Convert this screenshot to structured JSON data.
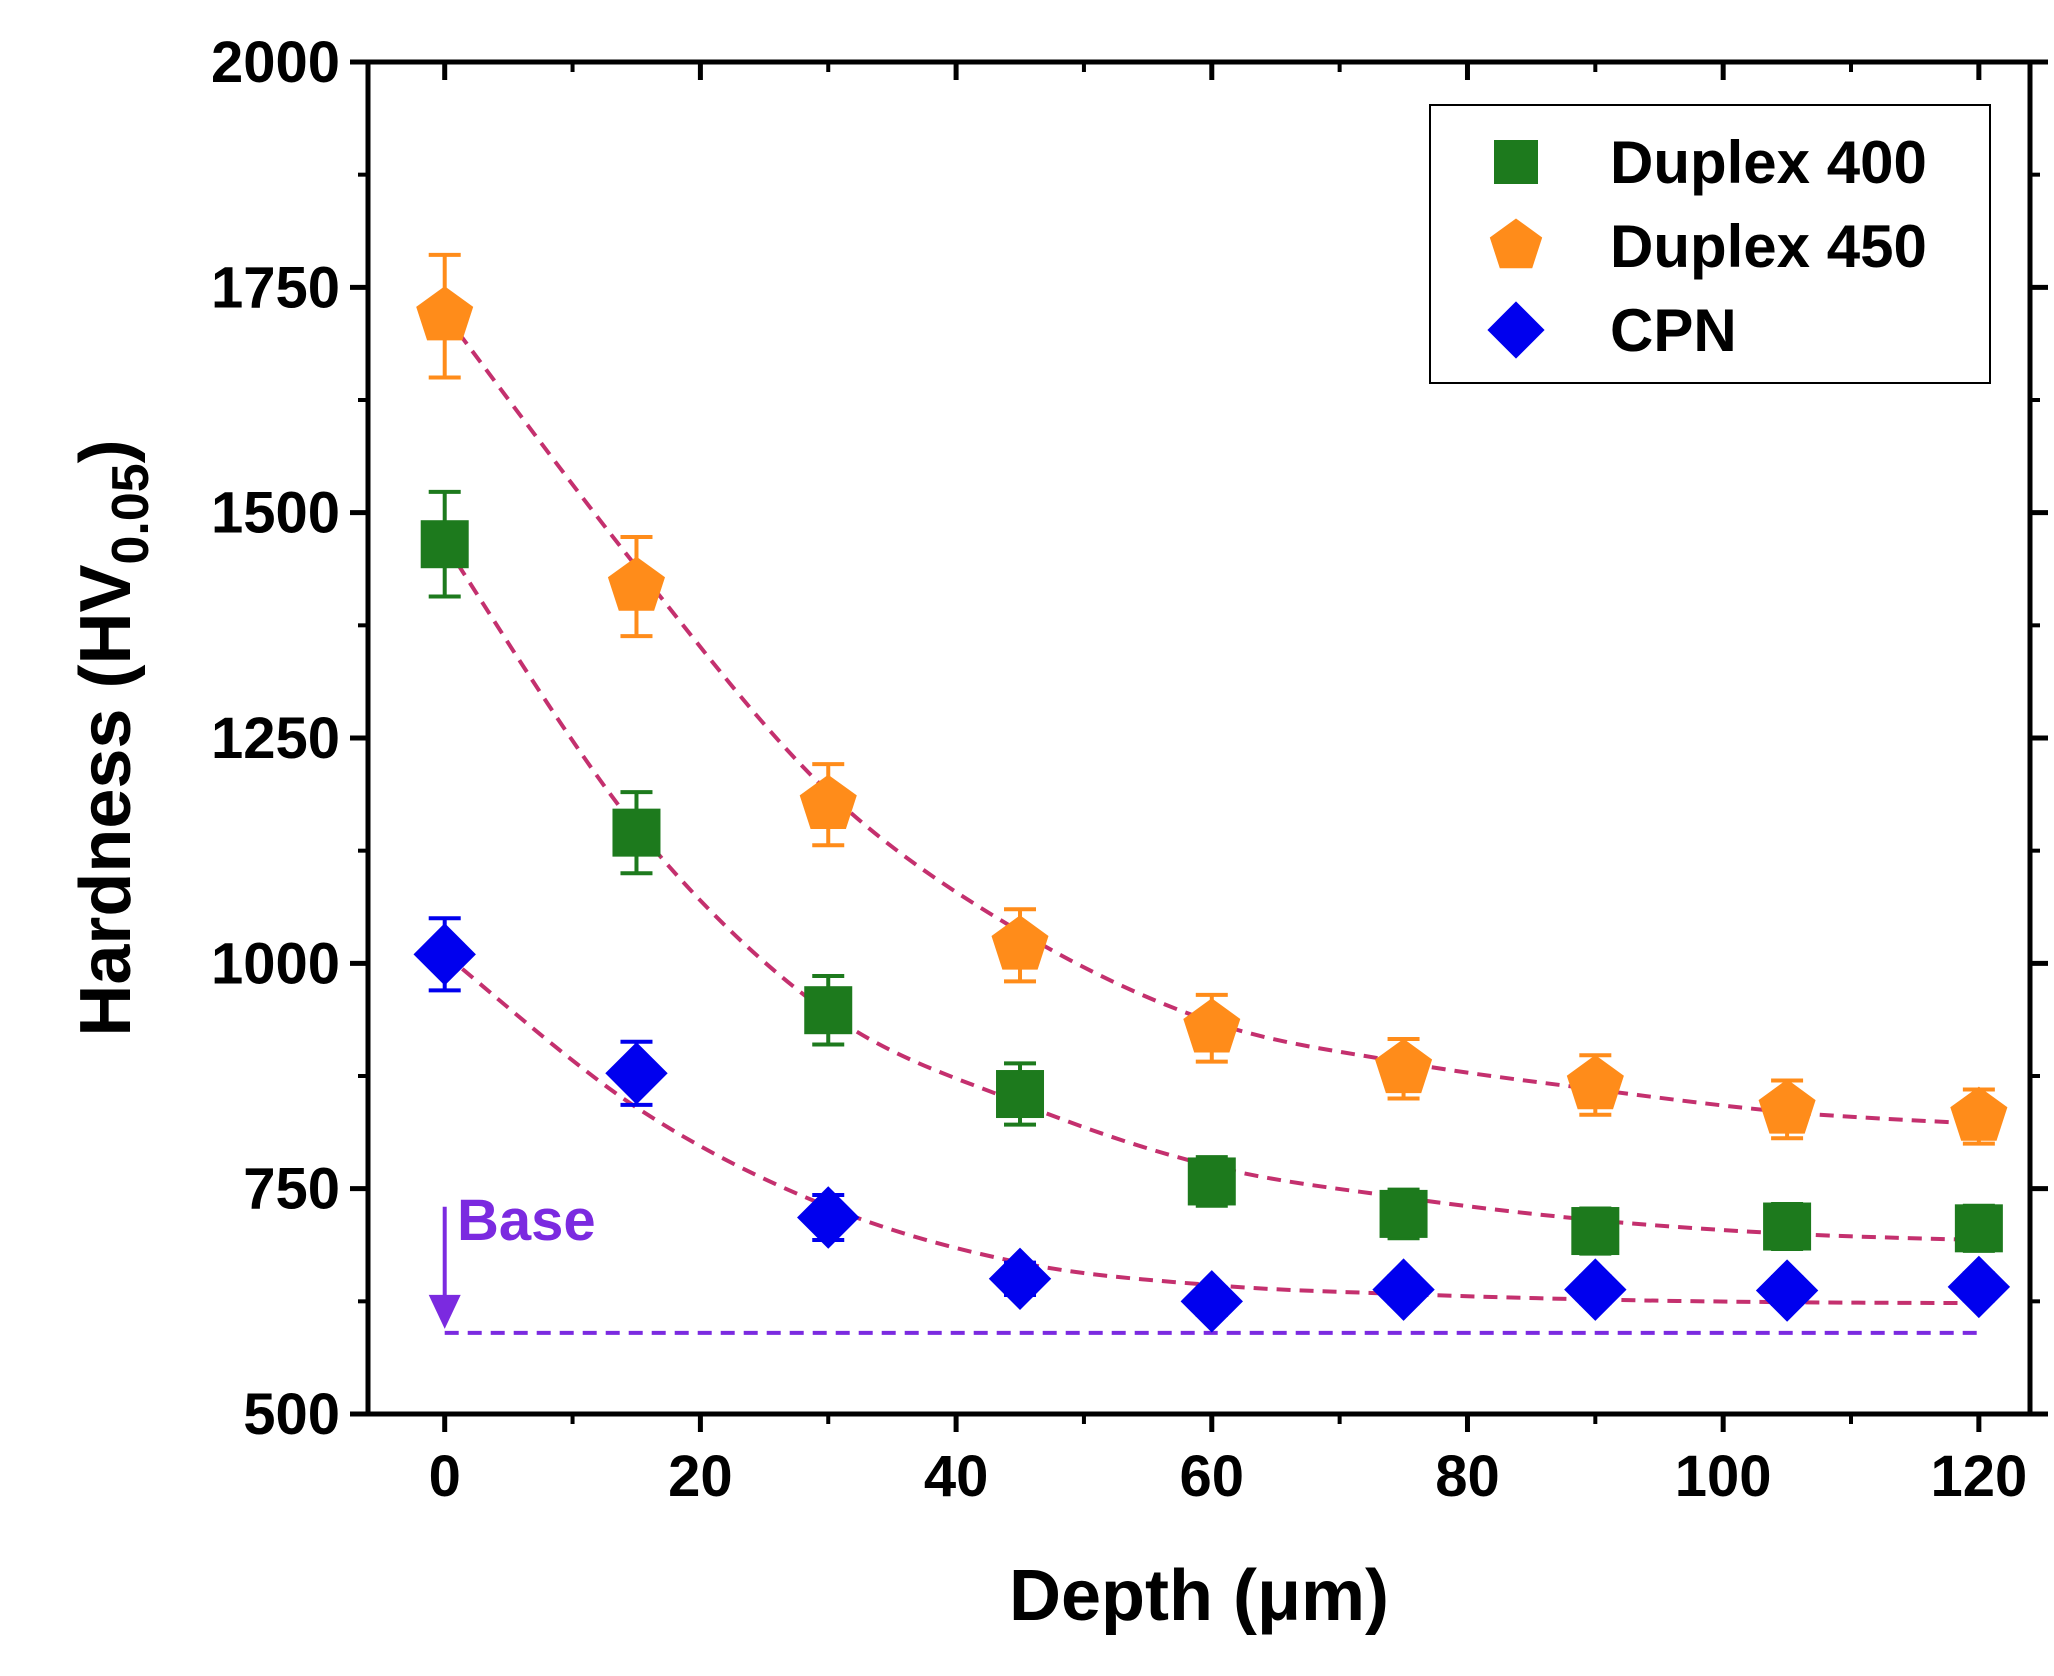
{
  "chart_data": {
    "type": "scatter",
    "title": "",
    "xlabel": "Depth (μm)",
    "ylabel": "Hardness (HV0.05)",
    "ylabel_main": "Hardness (HV",
    "ylabel_sub": "0.05",
    "ylabel_end": ")",
    "xlim": [
      -6,
      124
    ],
    "ylim": [
      500,
      2000
    ],
    "xticks": [
      0,
      20,
      40,
      60,
      80,
      100,
      120
    ],
    "xtick_labels": [
      "0",
      "20",
      "40",
      "60",
      "80",
      "100",
      "120"
    ],
    "yticks": [
      500,
      750,
      1000,
      1250,
      1500,
      1750,
      2000
    ],
    "ytick_labels": [
      "500",
      "750",
      "1000",
      "1250",
      "1500",
      "1750",
      "2000"
    ],
    "x": [
      0,
      15,
      30,
      45,
      60,
      75,
      90,
      105,
      120
    ],
    "series": [
      {
        "name": "Duplex 400",
        "marker": "square",
        "color": "#1d7a1d",
        "values": [
          1465,
          1145,
          948,
          855,
          758,
          722,
          703,
          708,
          706
        ],
        "errors": [
          58,
          45,
          38,
          34,
          27,
          27,
          25,
          25,
          25
        ],
        "fit": [
          1465,
          1150,
          945,
          845,
          775,
          740,
          715,
          700,
          693
        ]
      },
      {
        "name": "Duplex 450",
        "marker": "pentagon",
        "color": "#ff8c1a",
        "values": [
          1718,
          1418,
          1176,
          1020,
          928,
          883,
          865,
          838,
          830
        ],
        "errors": [
          68,
          55,
          45,
          40,
          37,
          33,
          33,
          32,
          30
        ],
        "fit": [
          1720,
          1440,
          1190,
          1035,
          935,
          890,
          860,
          835,
          822
        ]
      },
      {
        "name": "CPN",
        "marker": "diamond",
        "color": "#0000ee",
        "values": [
          1010,
          878,
          718,
          650,
          625,
          638,
          638,
          637,
          641
        ],
        "errors": [
          40,
          35,
          25,
          18,
          15,
          15,
          15,
          15,
          15
        ],
        "fit": [
          1010,
          840,
          730,
          668,
          643,
          633,
          627,
          624,
          623
        ]
      }
    ],
    "fit_color": "#c4306e",
    "base_line": {
      "y": 590,
      "x_start": 0,
      "x_end": 120,
      "color": "#7b2ae0"
    },
    "annotations": [
      {
        "text": "Base",
        "color": "#7b2ae0",
        "arrow_from_y": 730,
        "arrow_to_y": 590,
        "x": 0
      }
    ],
    "legend": {
      "position": "top-right"
    },
    "grid": false
  }
}
